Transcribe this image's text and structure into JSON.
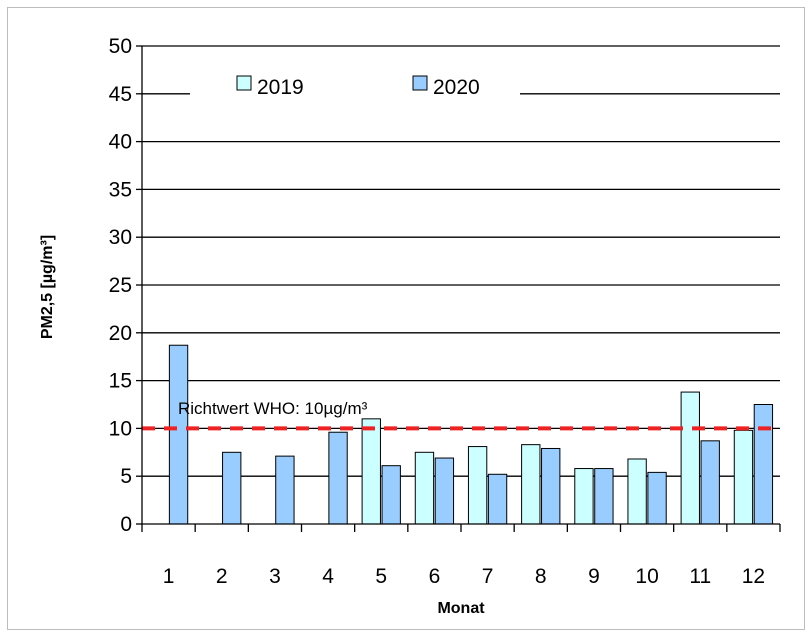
{
  "chart_data": {
    "type": "bar",
    "xlabel": "Monat",
    "ylabel": "PM2,5 [µg/m³]",
    "ylim": [
      0,
      50
    ],
    "yticks": [
      0,
      5,
      10,
      15,
      20,
      25,
      30,
      35,
      40,
      45,
      50
    ],
    "categories": [
      "1",
      "2",
      "3",
      "4",
      "5",
      "6",
      "7",
      "8",
      "9",
      "10",
      "11",
      "12"
    ],
    "grid": "horizontal",
    "legend_position": "top",
    "series": [
      {
        "name": "2019",
        "color": "#ccffff",
        "values": [
          null,
          null,
          null,
          null,
          11.0,
          7.5,
          8.1,
          8.3,
          5.8,
          6.8,
          13.8,
          9.8
        ]
      },
      {
        "name": "2020",
        "color": "#99ccff",
        "values": [
          18.7,
          7.5,
          7.1,
          9.6,
          6.1,
          6.9,
          5.2,
          7.9,
          5.8,
          5.4,
          8.7,
          12.5
        ]
      }
    ],
    "reference_line": {
      "value": 10,
      "label": "Richtwert WHO: 10µg/m³",
      "color": "#ee2222"
    }
  }
}
